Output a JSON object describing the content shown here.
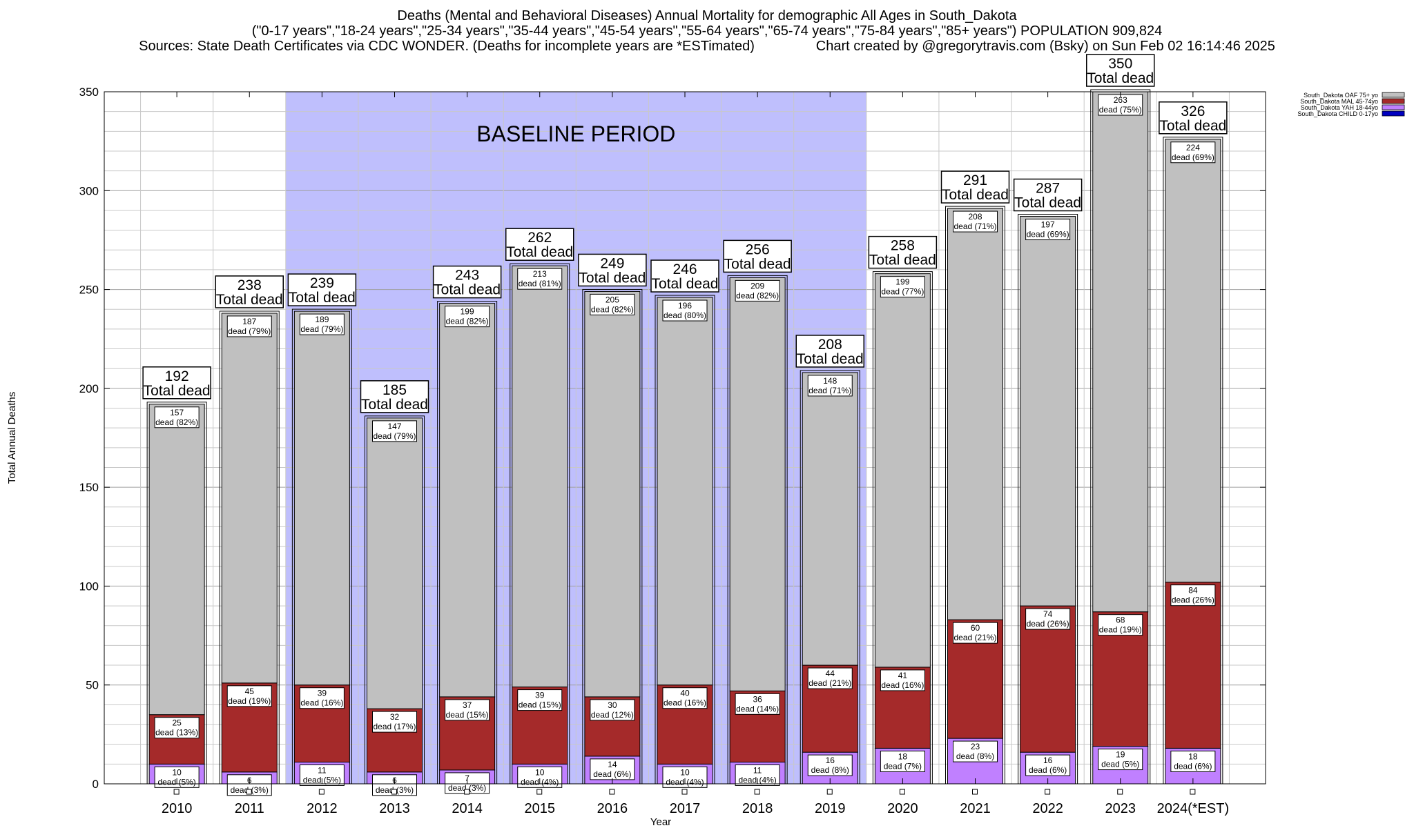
{
  "header": {
    "title": "Deaths (Mental and Behavioral Diseases) Annual Mortality for demographic All Ages in South_Dakota",
    "subtitle": "(\"0-17 years\",\"18-24 years\",\"25-34 years\",\"35-44 years\",\"45-54 years\",\"55-64 years\",\"65-74 years\",\"75-84 years\",\"85+ years\") POPULATION 909,824",
    "sources": "Sources: State Death Certificates via CDC WONDER. (Deaths for incomplete years are *ESTimated)                Chart created by @gregorytravis.com (Bsky) on Sun Feb 02 16:14:46 2025"
  },
  "chart_data": {
    "type": "bar",
    "stacked": true,
    "xlabel": "Year",
    "ylabel": "Total Annual Deaths",
    "ylim": [
      0,
      350
    ],
    "yticks": [
      0,
      50,
      100,
      150,
      200,
      250,
      300,
      350
    ],
    "categories": [
      "2010",
      "2011",
      "2012",
      "2013",
      "2014",
      "2015",
      "2016",
      "2017",
      "2018",
      "2019",
      "2020",
      "2021",
      "2022",
      "2023",
      "2024(*EST)"
    ],
    "baseline": {
      "label": "BASELINE PERIOD",
      "start": "2012",
      "end": "2019",
      "color": "#bfbffd"
    },
    "legend_position": "top-right",
    "total_label_suffix": "Total dead",
    "segment_label_word": "dead",
    "series": [
      {
        "name": "South_Dakota CHILD 0-17yo",
        "color": "#0000c0",
        "values": [
          0,
          0,
          0,
          0,
          0,
          0,
          0,
          0,
          0,
          0,
          0,
          0,
          0,
          0,
          0
        ],
        "pct": []
      },
      {
        "name": "South_Dakota YAH 18-44yo",
        "color": "#c080ff",
        "values": [
          10,
          6,
          11,
          6,
          7,
          10,
          14,
          10,
          11,
          16,
          18,
          23,
          16,
          19,
          18
        ],
        "pct": [
          "5%",
          "3%",
          "5%",
          "3%",
          "3%",
          "4%",
          "6%",
          "4%",
          "4%",
          "8%",
          "7%",
          "8%",
          "6%",
          "5%",
          "6%"
        ]
      },
      {
        "name": "South_Dakota MAL 45-74yo",
        "color": "#a52a2a",
        "values": [
          25,
          45,
          39,
          32,
          37,
          39,
          30,
          40,
          36,
          44,
          41,
          60,
          74,
          68,
          84
        ],
        "pct": [
          "13%",
          "19%",
          "16%",
          "17%",
          "15%",
          "15%",
          "12%",
          "16%",
          "14%",
          "21%",
          "16%",
          "21%",
          "26%",
          "19%",
          "26%"
        ]
      },
      {
        "name": "South_Dakota OAF 75+ yo",
        "color": "#c0c0c0",
        "values": [
          157,
          187,
          189,
          147,
          199,
          213,
          205,
          196,
          209,
          148,
          199,
          208,
          197,
          263,
          224
        ],
        "pct": [
          "82%",
          "79%",
          "79%",
          "79%",
          "82%",
          "81%",
          "82%",
          "80%",
          "82%",
          "71%",
          "77%",
          "71%",
          "69%",
          "75%",
          "69%"
        ]
      }
    ],
    "totals": [
      192,
      238,
      239,
      185,
      243,
      262,
      249,
      246,
      256,
      208,
      258,
      291,
      287,
      350,
      326
    ]
  }
}
